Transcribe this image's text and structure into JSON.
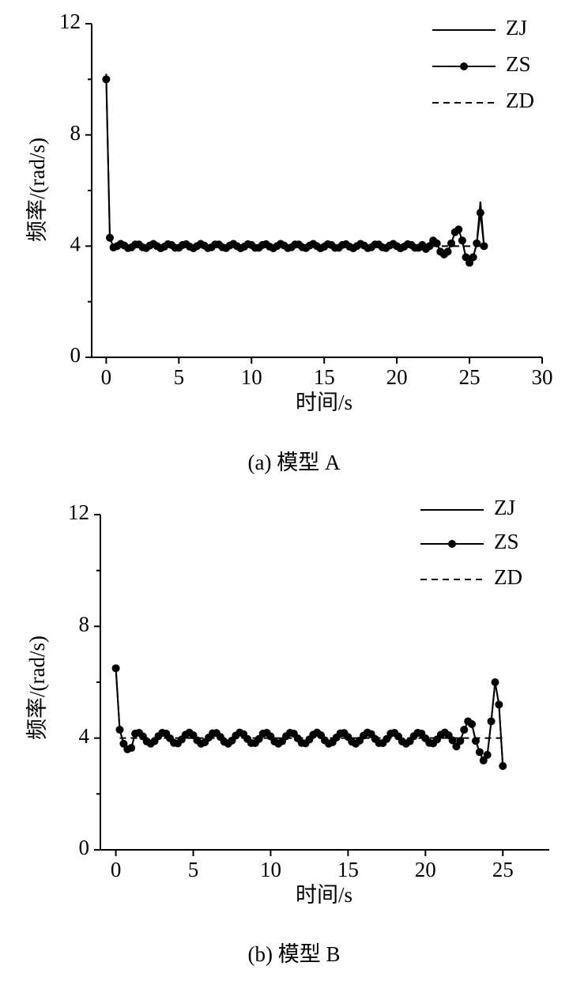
{
  "chart_data": [
    {
      "type": "line",
      "caption": "(a)  模型 A",
      "xlabel": "时间/s",
      "ylabel": "频率/(rad/s)",
      "xlim": [
        -1,
        30
      ],
      "xticks": [
        0,
        5,
        10,
        15,
        20,
        25,
        30
      ],
      "ylim": [
        0,
        12
      ],
      "yticks": [
        0,
        4,
        8,
        12
      ],
      "yminorticks": [
        2,
        6,
        10
      ],
      "legend": "upper right",
      "x": [
        0,
        0.25,
        0.5,
        0.75,
        1,
        1.25,
        1.5,
        1.75,
        2,
        2.25,
        2.5,
        2.75,
        3,
        3.25,
        3.5,
        3.75,
        4,
        4.25,
        4.5,
        4.75,
        5,
        5.25,
        5.5,
        5.75,
        6,
        6.25,
        6.5,
        6.75,
        7,
        7.25,
        7.5,
        7.75,
        8,
        8.25,
        8.5,
        8.75,
        9,
        9.25,
        9.5,
        9.75,
        10,
        10.25,
        10.5,
        10.75,
        11,
        11.25,
        11.5,
        11.75,
        12,
        12.25,
        12.5,
        12.75,
        13,
        13.25,
        13.5,
        13.75,
        14,
        14.25,
        14.5,
        14.75,
        15,
        15.25,
        15.5,
        15.75,
        16,
        16.25,
        16.5,
        16.75,
        17,
        17.25,
        17.5,
        17.75,
        18,
        18.25,
        18.5,
        18.75,
        19,
        19.25,
        19.5,
        19.75,
        20,
        20.25,
        20.5,
        20.75,
        21,
        21.25,
        21.5,
        21.75,
        22,
        22.25,
        22.5,
        22.75,
        23,
        23.25,
        23.5,
        23.75,
        24,
        24.25,
        24.5,
        24.75,
        25,
        25.25,
        25.5,
        25.75,
        26
      ],
      "series": [
        {
          "name": "ZJ",
          "color": "#000000",
          "style": "solid",
          "values": [
            10.2,
            4.3,
            3.95,
            4.0,
            4.08,
            4.02,
            3.93,
            3.96,
            4.06,
            4.06,
            3.96,
            3.93,
            4.02,
            4.08,
            4.0,
            3.92,
            3.98,
            4.07,
            4.04,
            3.94,
            3.94,
            4.04,
            4.07,
            3.98,
            3.92,
            4.0,
            4.08,
            4.02,
            3.93,
            3.96,
            4.06,
            4.06,
            3.96,
            3.93,
            4.02,
            4.08,
            4.0,
            3.92,
            3.98,
            4.07,
            4.04,
            3.94,
            3.94,
            4.04,
            4.07,
            3.98,
            3.92,
            4.0,
            4.08,
            4.02,
            3.93,
            3.96,
            4.06,
            4.06,
            3.96,
            3.93,
            4.02,
            4.08,
            4.0,
            3.92,
            3.98,
            4.07,
            4.04,
            3.94,
            3.94,
            4.04,
            4.07,
            3.98,
            3.92,
            4.0,
            4.08,
            4.02,
            3.93,
            3.96,
            4.06,
            4.06,
            3.96,
            3.93,
            4.02,
            4.08,
            4.0,
            3.92,
            3.98,
            4.07,
            4.04,
            3.94,
            3.94,
            4.04,
            3.9,
            4.0,
            4.2,
            4.1,
            3.8,
            3.7,
            3.8,
            4.1,
            4.5,
            4.6,
            4.2,
            3.6,
            3.4,
            3.6,
            4.1,
            5.6,
            4.0
          ]
        },
        {
          "name": "ZS",
          "color": "#000000",
          "style": "marker",
          "values": [
            10,
            4.3,
            3.95,
            4.0,
            4.08,
            4.02,
            3.93,
            3.96,
            4.06,
            4.06,
            3.96,
            3.93,
            4.02,
            4.08,
            4.0,
            3.92,
            3.98,
            4.07,
            4.04,
            3.94,
            3.94,
            4.04,
            4.07,
            3.98,
            3.92,
            4.0,
            4.08,
            4.02,
            3.93,
            3.96,
            4.06,
            4.06,
            3.96,
            3.93,
            4.02,
            4.08,
            4.0,
            3.92,
            3.98,
            4.07,
            4.04,
            3.94,
            3.94,
            4.04,
            4.07,
            3.98,
            3.92,
            4.0,
            4.08,
            4.02,
            3.93,
            3.96,
            4.06,
            4.06,
            3.96,
            3.93,
            4.02,
            4.08,
            4.0,
            3.92,
            3.98,
            4.07,
            4.04,
            3.94,
            3.94,
            4.04,
            4.07,
            3.98,
            3.92,
            4.0,
            4.08,
            4.02,
            3.93,
            3.96,
            4.06,
            4.06,
            3.96,
            3.93,
            4.02,
            4.08,
            4.0,
            3.92,
            3.98,
            4.07,
            4.04,
            3.94,
            3.94,
            4.04,
            3.9,
            4.0,
            4.2,
            4.1,
            3.8,
            3.7,
            3.8,
            4.1,
            4.5,
            4.6,
            4.2,
            3.6,
            3.4,
            3.6,
            4.1,
            5.2,
            4.0
          ]
        },
        {
          "name": "ZD",
          "color": "#000000",
          "style": "dashed",
          "x": [
            0.25,
            26
          ],
          "values": [
            4,
            4
          ]
        }
      ]
    },
    {
      "type": "line",
      "caption": "(b)  模型 B",
      "xlabel": "时间/s",
      "ylabel": "频率/(rad/s)",
      "xlim": [
        -1,
        28
      ],
      "xticks": [
        0,
        5,
        10,
        15,
        20,
        25
      ],
      "ylim": [
        0,
        12
      ],
      "yticks": [
        0,
        4,
        8,
        12
      ],
      "yminorticks": [
        2,
        6,
        10
      ],
      "legend": "upper right",
      "x": [
        0,
        0.25,
        0.5,
        0.75,
        1,
        1.25,
        1.5,
        1.75,
        2,
        2.25,
        2.5,
        2.75,
        3,
        3.25,
        3.5,
        3.75,
        4,
        4.25,
        4.5,
        4.75,
        5,
        5.25,
        5.5,
        5.75,
        6,
        6.25,
        6.5,
        6.75,
        7,
        7.25,
        7.5,
        7.75,
        8,
        8.25,
        8.5,
        8.75,
        9,
        9.25,
        9.5,
        9.75,
        10,
        10.25,
        10.5,
        10.75,
        11,
        11.25,
        11.5,
        11.75,
        12,
        12.25,
        12.5,
        12.75,
        13,
        13.25,
        13.5,
        13.75,
        14,
        14.25,
        14.5,
        14.75,
        15,
        15.25,
        15.5,
        15.75,
        16,
        16.25,
        16.5,
        16.75,
        17,
        17.25,
        17.5,
        17.75,
        18,
        18.25,
        18.5,
        18.75,
        19,
        19.25,
        19.5,
        19.75,
        20,
        20.25,
        20.5,
        20.75,
        21,
        21.25,
        21.5,
        21.75,
        22,
        22.25,
        22.5,
        22.75,
        23,
        23.25,
        23.5,
        23.75,
        24,
        24.25,
        24.5,
        24.75,
        25
      ],
      "series": [
        {
          "name": "ZJ",
          "color": "#000000",
          "style": "solid",
          "values": [
            6.5,
            4.3,
            3.8,
            3.6,
            3.65,
            4.16,
            4.19,
            4.06,
            3.88,
            3.8,
            3.89,
            4.07,
            4.19,
            4.16,
            3.99,
            3.83,
            3.81,
            3.95,
            4.12,
            4.2,
            4.1,
            3.92,
            3.8,
            3.85,
            4.02,
            4.17,
            4.18,
            4.04,
            3.87,
            3.8,
            3.91,
            4.09,
            4.2,
            4.14,
            3.97,
            3.82,
            3.82,
            3.97,
            4.16,
            4.19,
            4.06,
            3.88,
            3.8,
            3.89,
            4.07,
            4.19,
            4.16,
            3.99,
            3.83,
            3.81,
            3.95,
            4.12,
            4.2,
            4.1,
            3.92,
            3.8,
            3.85,
            4.02,
            4.17,
            4.18,
            4.04,
            3.87,
            3.8,
            3.91,
            4.09,
            4.2,
            4.14,
            3.97,
            3.82,
            3.82,
            3.97,
            4.16,
            4.19,
            4.06,
            3.88,
            3.8,
            3.89,
            4.07,
            4.19,
            4.16,
            3.99,
            3.83,
            3.81,
            3.95,
            4.12,
            4.2,
            4.1,
            3.92,
            3.7,
            3.9,
            4.3,
            4.6,
            4.5,
            3.9,
            3.5,
            3.2,
            3.4,
            4.6,
            6.0,
            5.2,
            3.0
          ]
        },
        {
          "name": "ZS",
          "color": "#000000",
          "style": "marker",
          "values": [
            6.5,
            4.3,
            3.8,
            3.6,
            3.65,
            4.16,
            4.19,
            4.06,
            3.88,
            3.8,
            3.89,
            4.07,
            4.19,
            4.16,
            3.99,
            3.83,
            3.81,
            3.95,
            4.12,
            4.2,
            4.1,
            3.92,
            3.8,
            3.85,
            4.02,
            4.17,
            4.18,
            4.04,
            3.87,
            3.8,
            3.91,
            4.09,
            4.2,
            4.14,
            3.97,
            3.82,
            3.82,
            3.97,
            4.16,
            4.19,
            4.06,
            3.88,
            3.8,
            3.89,
            4.07,
            4.19,
            4.16,
            3.99,
            3.83,
            3.81,
            3.95,
            4.12,
            4.2,
            4.1,
            3.92,
            3.8,
            3.85,
            4.02,
            4.17,
            4.18,
            4.04,
            3.87,
            3.8,
            3.91,
            4.09,
            4.2,
            4.14,
            3.97,
            3.82,
            3.82,
            3.97,
            4.16,
            4.19,
            4.06,
            3.88,
            3.8,
            3.89,
            4.07,
            4.19,
            4.16,
            3.99,
            3.83,
            3.81,
            3.95,
            4.12,
            4.2,
            4.1,
            3.92,
            3.7,
            3.9,
            4.3,
            4.6,
            4.5,
            3.9,
            3.5,
            3.2,
            3.4,
            4.6,
            6.0,
            5.2,
            3.0
          ]
        },
        {
          "name": "ZD",
          "color": "#000000",
          "style": "dashed",
          "x": [
            0.25,
            25
          ],
          "values": [
            4,
            4
          ]
        }
      ]
    }
  ]
}
